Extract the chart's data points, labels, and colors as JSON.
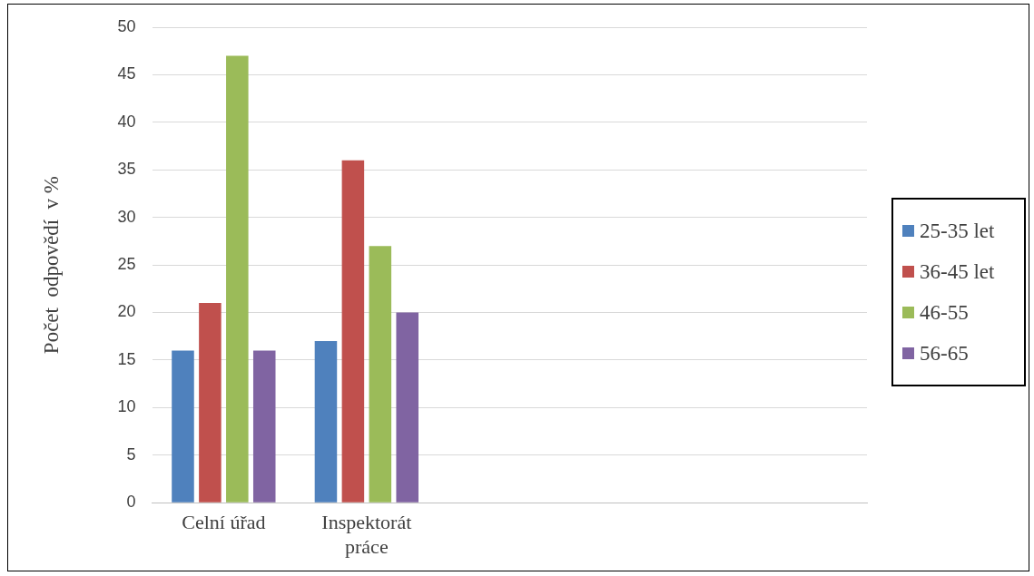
{
  "chart_data": {
    "type": "bar",
    "ylabel": "Počet  odpovědí  v %",
    "categories": [
      "Celní úřad",
      "Inspektorát práce",
      null,
      null,
      null
    ],
    "series": [
      {
        "name": "25-35 let",
        "color": "#4f81bd",
        "values": [
          16,
          17,
          null,
          null,
          null
        ]
      },
      {
        "name": "36-45 let",
        "color": "#c0504d",
        "values": [
          21,
          36,
          null,
          null,
          null
        ]
      },
      {
        "name": "46-55",
        "color": "#9bbb59",
        "values": [
          47,
          27,
          null,
          null,
          null
        ]
      },
      {
        "name": "56-65",
        "color": "#8064a2",
        "values": [
          16,
          20,
          null,
          null,
          null
        ]
      }
    ],
    "ylim": [
      0,
      50
    ],
    "yticks": [
      0,
      5,
      10,
      15,
      20,
      25,
      30,
      35,
      40,
      45,
      50
    ],
    "grid": "y",
    "legend": "right"
  }
}
